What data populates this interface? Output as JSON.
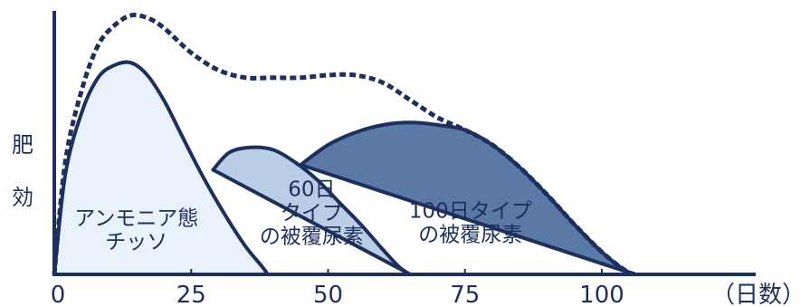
{
  "chart_data": {
    "type": "area",
    "xlabel": "（日数）",
    "ylabel": [
      "肥",
      "効"
    ],
    "xlim": [
      0,
      130
    ],
    "ylim": [
      0,
      100
    ],
    "x_ticks": [
      "0",
      "25",
      "50",
      "75",
      "100"
    ],
    "x_tick_values": [
      0,
      25,
      50,
      75,
      100
    ],
    "grid": false,
    "colors": {
      "ink": "#1d2f5c",
      "ammonium_fill": "#e9f2fa",
      "type60_fill": "#b9cde4",
      "type100_fill": "#5b79a6",
      "total_line": "#1d2f5c"
    },
    "series": [
      {
        "label_lines": [
          "アンモニア態",
          "チッソ"
        ],
        "x": [
          0,
          2,
          5,
          8,
          11,
          14,
          17,
          20,
          23,
          26,
          29,
          32,
          35,
          38,
          39
        ],
        "y": [
          0,
          40,
          65,
          79,
          84,
          85,
          80,
          70,
          57,
          44,
          32,
          21,
          11,
          3,
          0
        ],
        "label_pos": [
          15,
          18
        ]
      },
      {
        "label_lines": [
          "60日",
          "タイプ",
          "の被覆尿素"
        ],
        "x": [
          29,
          32,
          36,
          40,
          44,
          48,
          52,
          56,
          60,
          63,
          65
        ],
        "y": [
          42,
          49,
          51,
          50,
          45,
          38,
          29,
          20,
          10,
          3,
          0
        ],
        "label_pos": [
          47,
          25
        ]
      },
      {
        "label_lines": [
          "100日タイプ",
          "の被覆尿素"
        ],
        "x": [
          45,
          50,
          55,
          60,
          65,
          70,
          75,
          80,
          85,
          90,
          95,
          100,
          104,
          106
        ],
        "y": [
          44,
          52,
          57,
          60,
          61,
          60,
          58,
          52,
          43,
          32,
          20,
          9,
          2,
          0
        ],
        "label_pos": [
          76,
          21
        ]
      },
      {
        "style": "dashed",
        "x": [
          0,
          2,
          5,
          8,
          11,
          14,
          17,
          20,
          25,
          30,
          35,
          40,
          45,
          50,
          55,
          60,
          65,
          70,
          75,
          80,
          85,
          90,
          95,
          100,
          104,
          106
        ],
        "y": [
          0,
          45,
          74,
          92,
          100,
          104,
          103,
          99,
          89,
          82,
          79,
          79,
          79,
          80,
          80,
          77,
          70,
          63,
          58,
          52,
          43,
          32,
          20,
          9,
          2,
          0
        ]
      }
    ]
  }
}
